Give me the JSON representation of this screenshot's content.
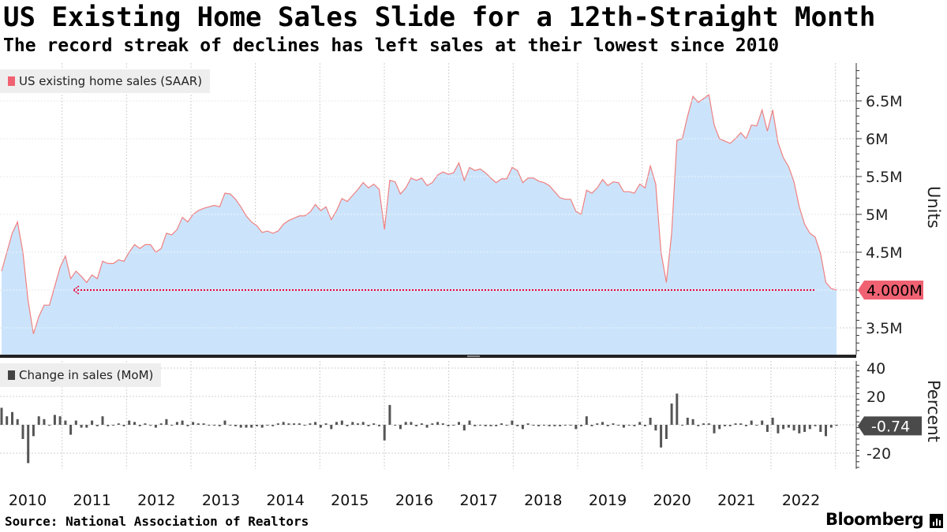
{
  "title": "US Existing Home Sales Slide for a 12th-Straight Month",
  "subtitle": "The record streak of declines has left sales at their lowest since 2010",
  "source": "Source: National Association of Realtors",
  "brand": "Bloomberg",
  "colors": {
    "area_fill": "#cce4fb",
    "line": "#f08080",
    "bar": "#555555",
    "marker": "#f06272",
    "dotted": "#e8003c"
  },
  "chart_data": [
    {
      "type": "area",
      "legend": "US existing home sales (SAAR)",
      "ylabel": "Units",
      "ylim": [
        3.15,
        7.0
      ],
      "yticks": [
        3.5,
        4.0,
        4.5,
        5.0,
        5.5,
        6.0,
        6.5
      ],
      "ytick_labels": [
        "3.5M",
        "",
        "4.5M",
        "5M",
        "5.5M",
        "6M",
        "6.5M"
      ],
      "last_value": 4.0,
      "last_value_label": "4.000M",
      "reference_line": 4.0,
      "x_start": 2010.0,
      "x_step": 0.0833333,
      "values": [
        4.25,
        4.5,
        4.75,
        4.9,
        4.5,
        3.85,
        3.42,
        3.65,
        3.8,
        3.8,
        4.05,
        4.3,
        4.45,
        4.15,
        4.25,
        4.18,
        4.1,
        4.2,
        4.15,
        4.38,
        4.35,
        4.35,
        4.4,
        4.38,
        4.5,
        4.6,
        4.55,
        4.6,
        4.6,
        4.5,
        4.55,
        4.75,
        4.73,
        4.8,
        4.96,
        4.9,
        5.0,
        5.05,
        5.08,
        5.1,
        5.12,
        5.1,
        5.28,
        5.27,
        5.2,
        5.1,
        4.98,
        4.9,
        4.85,
        4.76,
        4.78,
        4.75,
        4.78,
        4.87,
        4.92,
        4.95,
        4.98,
        4.98,
        5.03,
        5.13,
        5.05,
        5.1,
        4.93,
        5.05,
        5.21,
        5.17,
        5.25,
        5.33,
        5.42,
        5.35,
        5.4,
        5.33,
        4.8,
        5.45,
        5.43,
        5.27,
        5.35,
        5.48,
        5.45,
        5.48,
        5.38,
        5.42,
        5.52,
        5.56,
        5.53,
        5.55,
        5.68,
        5.45,
        5.62,
        5.58,
        5.6,
        5.55,
        5.48,
        5.42,
        5.47,
        5.47,
        5.62,
        5.58,
        5.42,
        5.48,
        5.48,
        5.44,
        5.42,
        5.38,
        5.3,
        5.22,
        5.2,
        5.2,
        5.04,
        5.0,
        5.32,
        5.28,
        5.35,
        5.46,
        5.38,
        5.43,
        5.42,
        5.3,
        5.3,
        5.28,
        5.4,
        5.35,
        5.64,
        5.4,
        4.5,
        4.1,
        4.75,
        5.98,
        6.0,
        6.3,
        6.56,
        6.48,
        6.53,
        6.58,
        6.18,
        6.0,
        5.97,
        5.94,
        6.0,
        6.08,
        6.0,
        6.18,
        6.17,
        6.38,
        6.1,
        6.38,
        5.95,
        5.75,
        5.63,
        5.43,
        5.1,
        4.87,
        4.75,
        4.7,
        4.48,
        4.1,
        4.02,
        4.0
      ]
    },
    {
      "type": "bar",
      "legend": "Change in sales (MoM)",
      "ylabel": "Percent",
      "ylim": [
        -30,
        45
      ],
      "yticks": [
        40,
        20,
        -20
      ],
      "ytick_labels": [
        "40",
        "20",
        "-20"
      ],
      "last_value": -0.74,
      "last_value_label": "-0.74",
      "x_start": 2010.0,
      "x_step": 0.0833333,
      "values": [
        12,
        6,
        9,
        4,
        -10,
        -27,
        -8,
        6,
        4,
        0,
        7,
        6,
        3,
        -7,
        3,
        -2,
        -2,
        3,
        -1,
        6,
        -1,
        0,
        1,
        -1,
        3,
        2,
        -1,
        1,
        0,
        -2,
        1,
        4,
        0,
        2,
        3,
        -1,
        2,
        1,
        1,
        0,
        0,
        -1,
        3,
        0,
        -1,
        -2,
        -2,
        -2,
        -1,
        -2,
        0,
        -1,
        1,
        2,
        1,
        1,
        1,
        0,
        1,
        2,
        -2,
        1,
        -3,
        2,
        3,
        -1,
        2,
        1,
        2,
        -1,
        1,
        -1,
        -11,
        14,
        0,
        -3,
        2,
        2,
        -1,
        1,
        -2,
        1,
        2,
        1,
        -1,
        0,
        2,
        -4,
        3,
        -1,
        0,
        -1,
        -1,
        -1,
        1,
        0,
        3,
        -1,
        -3,
        1,
        0,
        -1,
        0,
        -1,
        -1,
        -1,
        0,
        0,
        -3,
        -1,
        6,
        -1,
        1,
        2,
        -1,
        1,
        0,
        -2,
        0,
        -1,
        2,
        -1,
        5,
        -4,
        -16,
        -10,
        15,
        22,
        0,
        5,
        4,
        -1,
        1,
        1,
        -6,
        -3,
        -1,
        -1,
        1,
        1,
        -1,
        3,
        0,
        3,
        -5,
        5,
        -6,
        -3,
        -2,
        -4,
        -6,
        -5,
        -3,
        -1,
        -5,
        -8,
        -2,
        -0.74
      ]
    }
  ],
  "x_axis": {
    "years": [
      "2010",
      "2011",
      "2012",
      "2013",
      "2014",
      "2015",
      "2016",
      "2017",
      "2018",
      "2019",
      "2020",
      "2021",
      "2022"
    ]
  }
}
